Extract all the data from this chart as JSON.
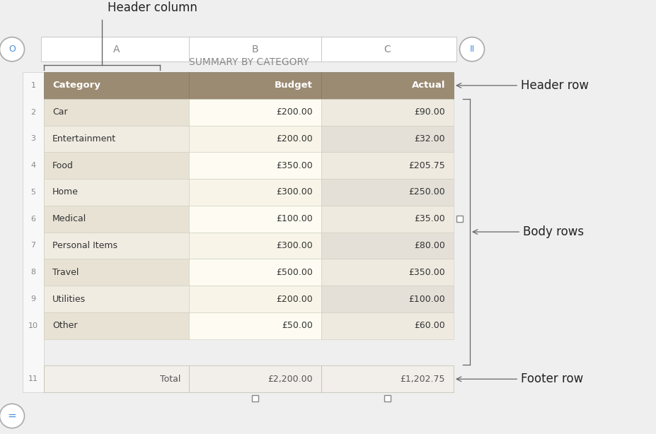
{
  "title": "SUMMARY BY CATEGORY",
  "col_labels": [
    "A",
    "B",
    "C"
  ],
  "header_row": [
    "Category",
    "Budget",
    "Actual"
  ],
  "body_rows": [
    [
      "Car",
      "£200.00",
      "£90.00"
    ],
    [
      "Entertainment",
      "£200.00",
      "£32.00"
    ],
    [
      "Food",
      "£350.00",
      "£205.75"
    ],
    [
      "Home",
      "£300.00",
      "£250.00"
    ],
    [
      "Medical",
      "£100.00",
      "£35.00"
    ],
    [
      "Personal Items",
      "£300.00",
      "£80.00"
    ],
    [
      "Travel",
      "£500.00",
      "£350.00"
    ],
    [
      "Utilities",
      "£200.00",
      "£100.00"
    ],
    [
      "Other",
      "£50.00",
      "£60.00"
    ]
  ],
  "footer_row": [
    "Total",
    "£2,200.00",
    "£1,202.75"
  ],
  "header_col_color": "#9b8b72",
  "header_row_color": "#9b8b72",
  "body_col_a_colors": [
    "#e8e2d5",
    "#f0ece2",
    "#e8e2d5",
    "#f0ece2",
    "#e8e2d5",
    "#f0ece2",
    "#e8e2d5",
    "#f0ece2",
    "#e8e2d5"
  ],
  "body_col_b_colors": [
    "#fefcf2",
    "#f8f5e8",
    "#fefcf2",
    "#f8f5e8",
    "#fefcf2",
    "#f8f5e8",
    "#fefcf2",
    "#f8f5e8",
    "#fefcf2"
  ],
  "body_col_c_colors": [
    "#eeeae0",
    "#e4e0d8",
    "#eeeae0",
    "#e4e0d8",
    "#eeeae0",
    "#e4e0d8",
    "#eeeae0",
    "#e4e0d8",
    "#eeeae0"
  ],
  "footer_color": "#f2eeea",
  "outer_bg": "#efefef",
  "header_text_color": "#ffffff",
  "body_text_color": "#333333",
  "footer_text_color": "#555555",
  "row_num_color": "#888888",
  "col_label_color": "#888888",
  "annotation_header_column": "Header column",
  "annotation_header_row": "Header row",
  "annotation_body_rows": "Body rows",
  "annotation_footer_row": "Footer row",
  "ann_fontsize": 12,
  "title_fontsize": 10,
  "title_color": "#888888",
  "cell_edge_color": "#ccccbb",
  "bar_bg_color": "#ffffff",
  "bar_edge_color": "#cccccc"
}
